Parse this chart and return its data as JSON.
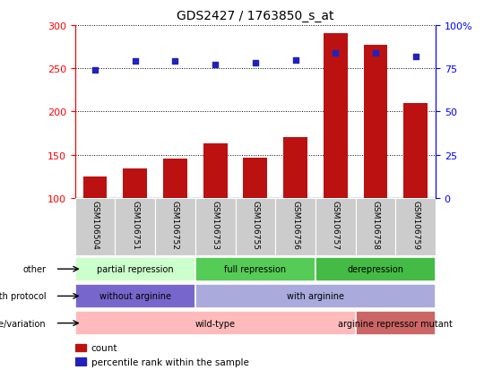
{
  "title": "GDS2427 / 1763850_s_at",
  "samples": [
    "GSM106504",
    "GSM106751",
    "GSM106752",
    "GSM106753",
    "GSM106755",
    "GSM106756",
    "GSM106757",
    "GSM106758",
    "GSM106759"
  ],
  "counts": [
    125,
    134,
    146,
    163,
    147,
    170,
    291,
    277,
    210
  ],
  "percentile_ranks": [
    74,
    79,
    79,
    77,
    78,
    80,
    84,
    84,
    82
  ],
  "ylim_left": [
    100,
    300
  ],
  "ylim_right": [
    0,
    100
  ],
  "yticks_left": [
    100,
    150,
    200,
    250,
    300
  ],
  "yticks_right": [
    0,
    25,
    50,
    75,
    100
  ],
  "bar_color": "#bb1111",
  "dot_color": "#2222bb",
  "bar_width": 0.6,
  "annotation_rows": [
    {
      "label": "other",
      "segments": [
        {
          "text": "partial repression",
          "start": 0,
          "end": 3,
          "color": "#ccffcc"
        },
        {
          "text": "full repression",
          "start": 3,
          "end": 6,
          "color": "#55cc55"
        },
        {
          "text": "derepression",
          "start": 6,
          "end": 9,
          "color": "#44bb44"
        }
      ]
    },
    {
      "label": "growth protocol",
      "segments": [
        {
          "text": "without arginine",
          "start": 0,
          "end": 3,
          "color": "#7766cc"
        },
        {
          "text": "with arginine",
          "start": 3,
          "end": 9,
          "color": "#aaaadd"
        }
      ]
    },
    {
      "label": "genotype/variation",
      "segments": [
        {
          "text": "wild-type",
          "start": 0,
          "end": 7,
          "color": "#ffbbbb"
        },
        {
          "text": "arginine repressor mutant",
          "start": 7,
          "end": 9,
          "color": "#cc6666"
        }
      ]
    }
  ],
  "legend_items": [
    {
      "label": "count",
      "color": "#bb1111"
    },
    {
      "label": "percentile rank within the sample",
      "color": "#2222bb"
    }
  ],
  "xtick_bg_color": "#cccccc",
  "right_ytick_labels": [
    "0",
    "25",
    "50",
    "75",
    "100%"
  ],
  "left_ytick_labels": [
    "100",
    "150",
    "200",
    "250",
    "300"
  ]
}
